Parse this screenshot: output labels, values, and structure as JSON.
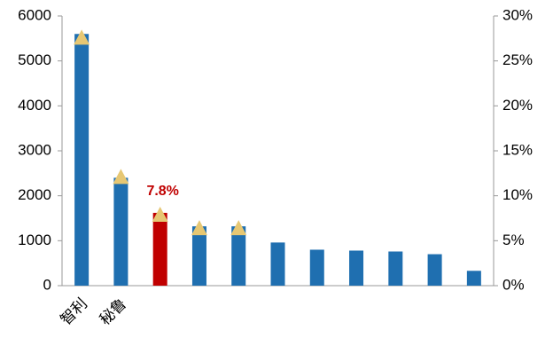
{
  "chart_data": {
    "type": "bar",
    "categories": [
      "智利",
      "秘鲁",
      null,
      null,
      null,
      null,
      null,
      null,
      null,
      null,
      null
    ],
    "series": [
      {
        "values": [
          5600,
          2400,
          1620,
          1320,
          1320,
          960,
          800,
          780,
          760,
          700,
          330
        ],
        "colors": [
          "#1f6fb0",
          "#1f6fb0",
          "#c00000",
          "#1f6fb0",
          "#1f6fb0",
          "#1f6fb0",
          "#1f6fb0",
          "#1f6fb0",
          "#1f6fb0",
          "#1f6fb0",
          "#1f6fb0"
        ]
      },
      {
        "type": "triangle",
        "axis": "y2",
        "color": "#e6c773",
        "values": [
          27.5,
          12,
          7.8,
          6.3,
          6.3,
          null,
          null,
          null,
          null,
          null,
          null
        ],
        "value_labels": [
          null,
          null,
          "7.8%",
          null,
          null,
          null,
          null,
          null,
          null,
          null,
          null
        ],
        "label_color": "#c00000"
      }
    ],
    "ylim": [
      0,
      6000
    ],
    "yticks": [
      0,
      1000,
      2000,
      3000,
      4000,
      5000,
      6000
    ],
    "y2lim": [
      0,
      30
    ],
    "y2ticks": [
      {
        "value": 0,
        "label": "0%"
      },
      {
        "value": 5,
        "label": "5%"
      },
      {
        "value": 10,
        "label": "10%"
      },
      {
        "value": 15,
        "label": "15%"
      },
      {
        "value": 20,
        "label": "20%"
      },
      {
        "value": 25,
        "label": "25%"
      },
      {
        "value": 30,
        "label": "30%"
      }
    ]
  }
}
